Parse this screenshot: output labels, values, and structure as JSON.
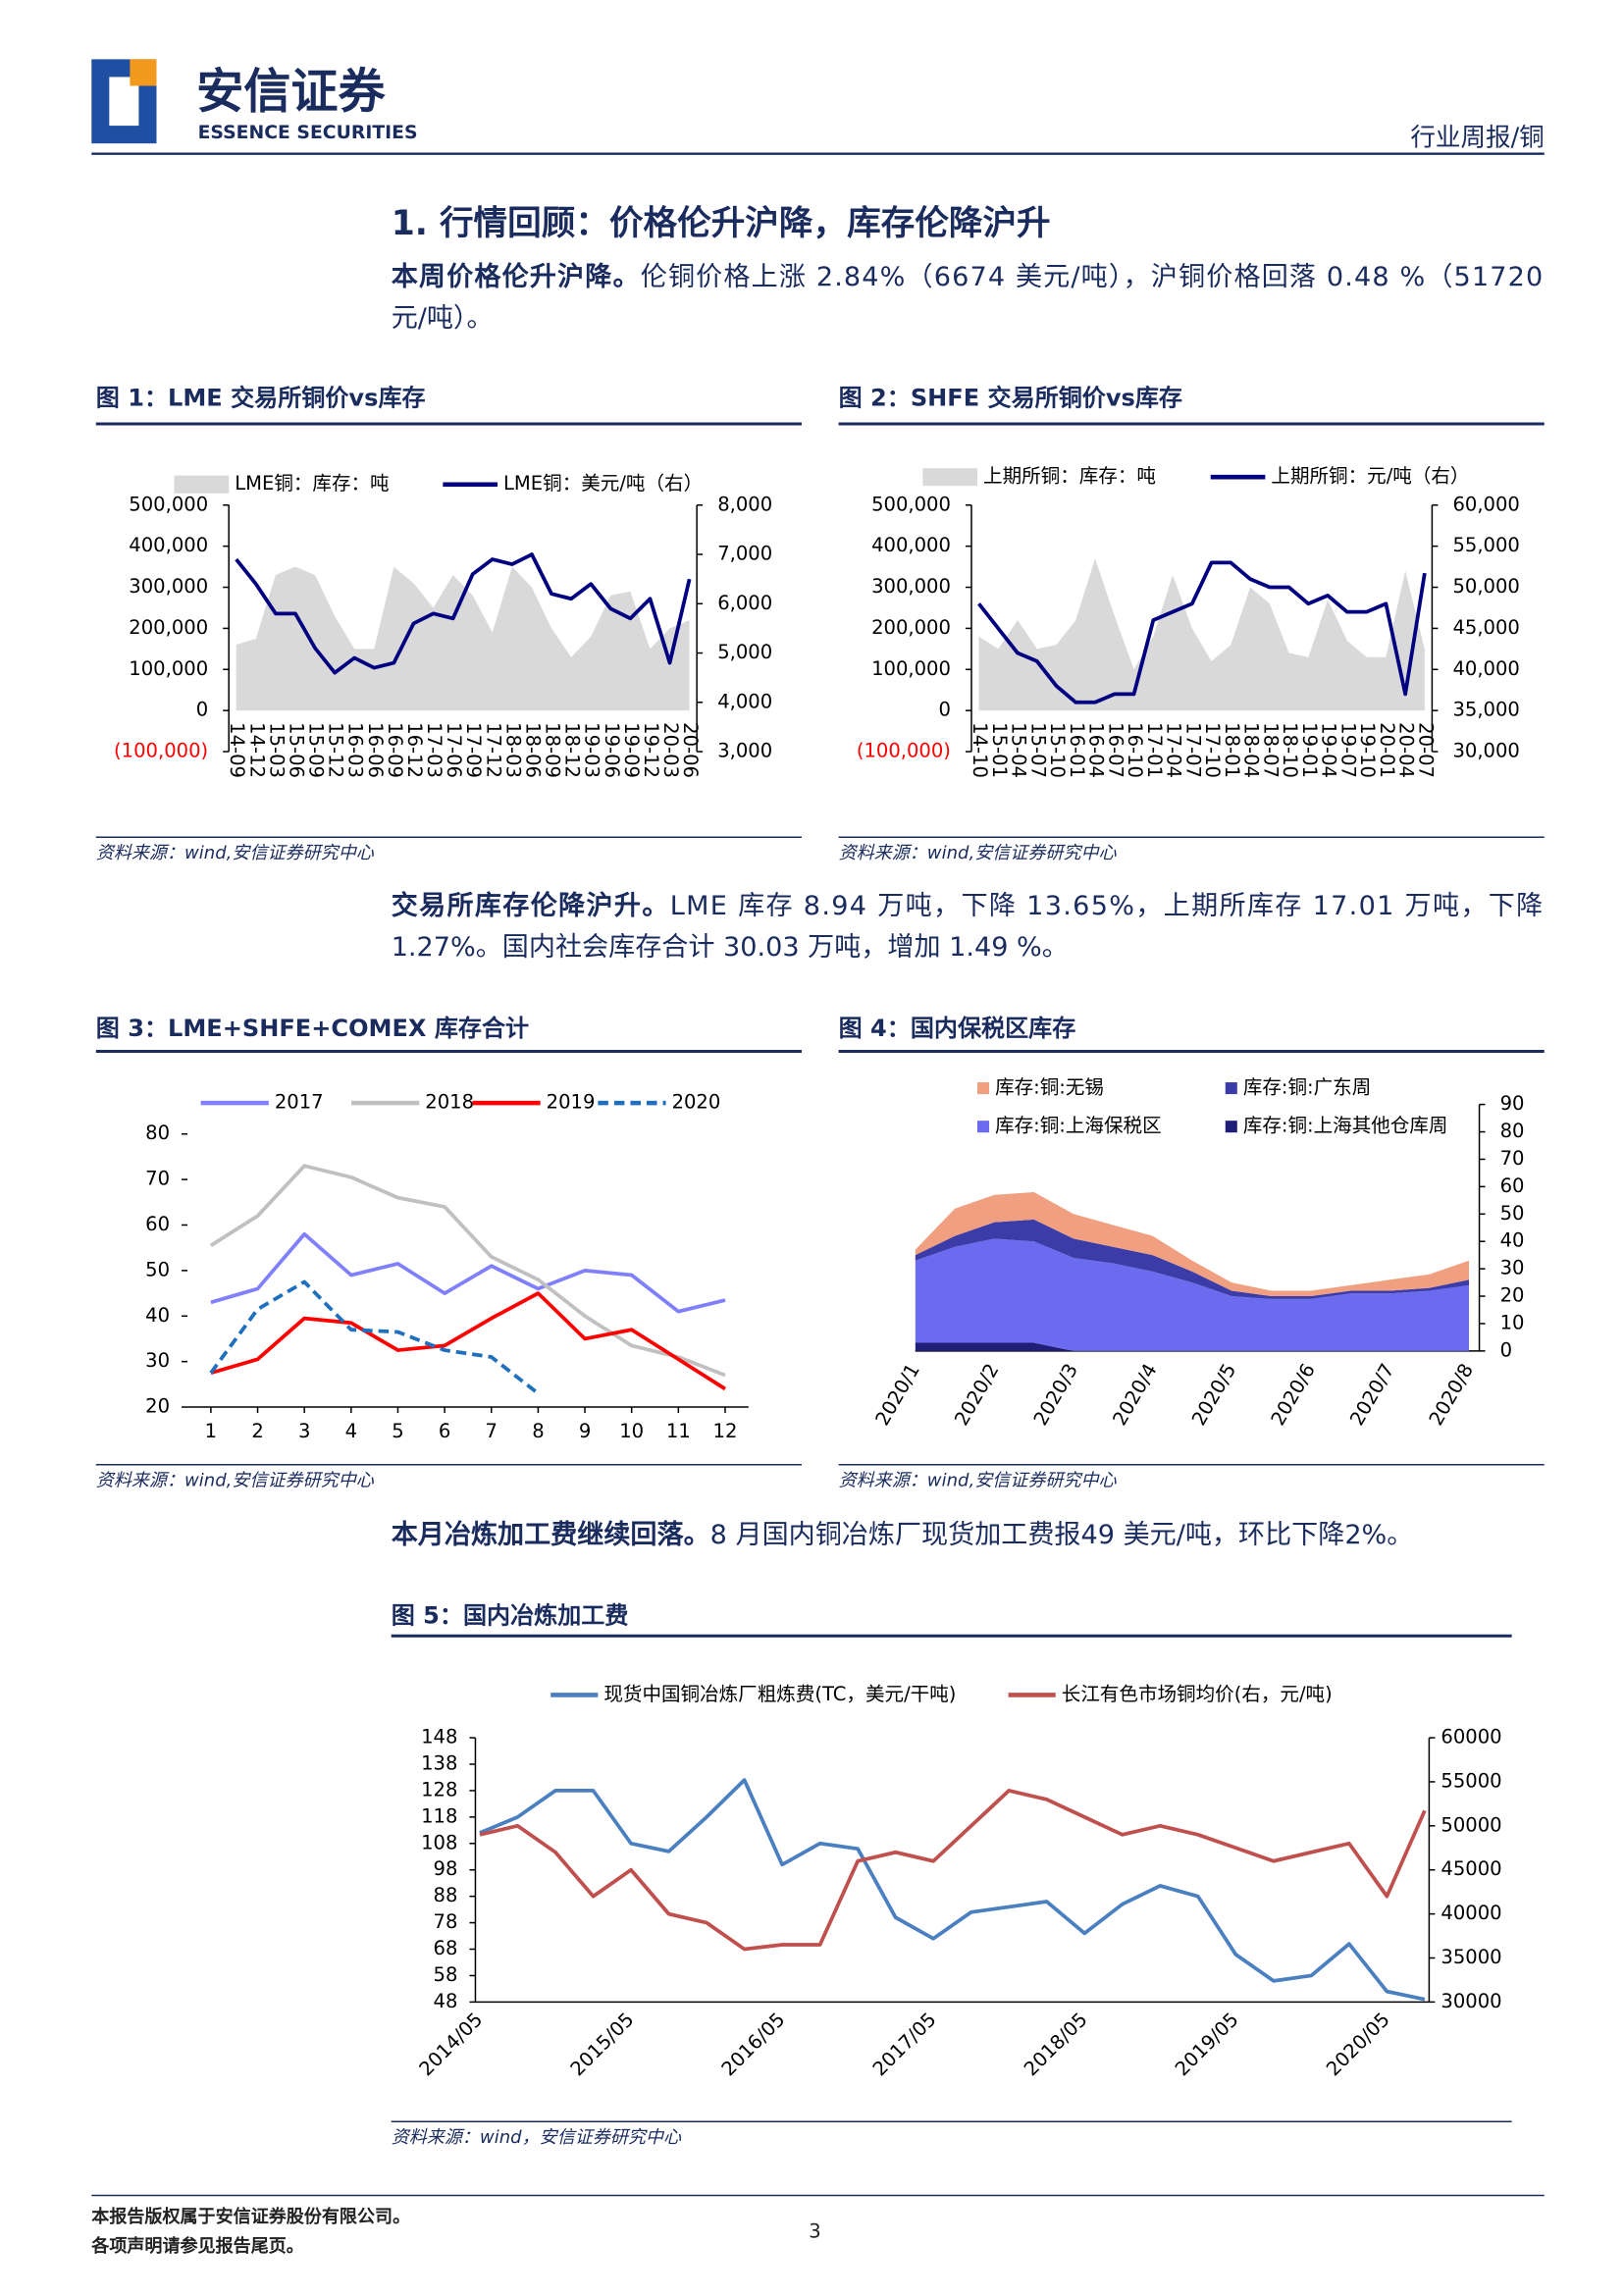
{
  "header": {
    "brand": "安信证券",
    "brand_en": "ESSENCE SECURITIES",
    "category": "行业周报/铜"
  },
  "section_title": "1. 行情回顾：价格伦升沪降，库存伦降沪升",
  "paragraphs": [
    {
      "lead": "本周价格伦升沪降。",
      "lines": [
        "伦铜价格上涨 2.84%（6674 美元/吨），沪铜价格回落 0.48 %（51720",
        "元/吨）。"
      ]
    },
    {
      "lead": "交易所库存伦降沪升。",
      "lines": [
        "LME 库存 8.94 万吨，下降 13.65%，上期所库存 17.01 万吨，下降",
        "1.27%。国内社会库存合计 30.03 万吨，增加 1.49 %。"
      ]
    },
    {
      "lead": "本月冶炼加工费继续回落。",
      "lines": [
        "8 月国内铜冶炼厂现货加工费报49 美元/吨，环比下降2%。"
      ]
    }
  ],
  "chart_data": [
    {
      "type": "combo",
      "title": "图 1：LME 交易所铜价vs库存",
      "source": "资料来源：wind,安信证券研究中心",
      "categories": [
        "14-09",
        "14-12",
        "15-03",
        "15-06",
        "15-09",
        "15-12",
        "16-03",
        "16-06",
        "16-09",
        "16-12",
        "17-03",
        "17-06",
        "17-09",
        "17-12",
        "18-03",
        "18-06",
        "18-09",
        "18-12",
        "19-03",
        "19-06",
        "19-09",
        "19-12",
        "20-03",
        "20-06"
      ],
      "series": [
        {
          "name": "LME铜：库存：吨",
          "kind": "area",
          "color": "#d9d9d9",
          "values": [
            160000,
            175000,
            330000,
            350000,
            330000,
            230000,
            150000,
            150000,
            350000,
            310000,
            250000,
            330000,
            280000,
            190000,
            350000,
            300000,
            200000,
            130000,
            180000,
            280000,
            290000,
            150000,
            200000,
            220000
          ]
        },
        {
          "name": "LME铜：美元/吨（右）",
          "kind": "line",
          "axis": "y2",
          "color": "#000080",
          "values": [
            6900,
            6400,
            5800,
            5800,
            5100,
            4600,
            4900,
            4700,
            4800,
            5600,
            5800,
            5700,
            6600,
            6900,
            6800,
            7000,
            6200,
            6100,
            6400,
            5900,
            5700,
            6100,
            4800,
            6500
          ]
        }
      ],
      "ylim": [
        -100000,
        500000
      ],
      "yticks": [
        {
          "value": -100000,
          "label": "(100,000)"
        },
        0,
        {
          "value": 100000,
          "label": "100,000"
        },
        {
          "value": 200000,
          "label": "200,000"
        },
        {
          "value": 300000,
          "label": "300,000"
        },
        {
          "value": 400000,
          "label": "400,000"
        },
        {
          "value": 500000,
          "label": "500,000"
        }
      ],
      "negative_tick_color": "#ff0000",
      "y2lim": [
        3000,
        8000
      ],
      "y2ticks": [
        {
          "value": 3000,
          "label": "3,000"
        },
        {
          "value": 4000,
          "label": "4,000"
        },
        {
          "value": 5000,
          "label": "5,000"
        },
        {
          "value": 6000,
          "label": "6,000"
        },
        {
          "value": 7000,
          "label": "7,000"
        },
        {
          "value": 8000,
          "label": "8,000"
        }
      ]
    },
    {
      "type": "combo",
      "title": "图 2：SHFE 交易所铜价vs库存",
      "source": "资料来源：wind,安信证券研究中心",
      "categories": [
        "14-10",
        "15-01",
        "15-04",
        "15-07",
        "15-10",
        "16-01",
        "16-04",
        "16-07",
        "16-10",
        "17-01",
        "17-04",
        "17-07",
        "17-10",
        "18-01",
        "18-04",
        "18-07",
        "18-10",
        "19-01",
        "19-04",
        "19-07",
        "19-10",
        "20-01",
        "20-04",
        "20-07"
      ],
      "series": [
        {
          "name": "上期所铜：库存：吨",
          "kind": "area",
          "color": "#d9d9d9",
          "values": [
            180000,
            150000,
            220000,
            150000,
            160000,
            220000,
            370000,
            230000,
            100000,
            180000,
            330000,
            200000,
            120000,
            160000,
            300000,
            260000,
            140000,
            130000,
            270000,
            170000,
            130000,
            130000,
            340000,
            150000
          ]
        },
        {
          "name": "上期所铜：元/吨（右）",
          "kind": "line",
          "axis": "y2",
          "color": "#000080",
          "values": [
            48000,
            45000,
            42000,
            41000,
            38000,
            36000,
            36000,
            37000,
            37000,
            46000,
            47000,
            48000,
            53000,
            53000,
            51000,
            50000,
            50000,
            48000,
            49000,
            47000,
            47000,
            48000,
            37000,
            51720
          ]
        }
      ],
      "ylim": [
        -100000,
        500000
      ],
      "yticks": [
        {
          "value": -100000,
          "label": "(100,000)"
        },
        0,
        {
          "value": 100000,
          "label": "100,000"
        },
        {
          "value": 200000,
          "label": "200,000"
        },
        {
          "value": 300000,
          "label": "300,000"
        },
        {
          "value": 400000,
          "label": "400,000"
        },
        {
          "value": 500000,
          "label": "500,000"
        }
      ],
      "negative_tick_color": "#ff0000",
      "y2lim": [
        30000,
        60000
      ],
      "y2ticks": [
        {
          "value": 30000,
          "label": "30,000"
        },
        {
          "value": 35000,
          "label": "35,000"
        },
        {
          "value": 40000,
          "label": "40,000"
        },
        {
          "value": 45000,
          "label": "45,000"
        },
        {
          "value": 50000,
          "label": "50,000"
        },
        {
          "value": 55000,
          "label": "55,000"
        },
        {
          "value": 60000,
          "label": "60,000"
        }
      ]
    },
    {
      "type": "line",
      "title": "图 3：LME+SHFE+COMEX 库存合计",
      "source": "资料来源：wind,安信证券研究中心",
      "x": [
        1,
        2,
        3,
        4,
        5,
        6,
        7,
        8,
        9,
        10,
        11,
        12
      ],
      "xlim": [
        0.5,
        12.5
      ],
      "xticks": [
        1,
        2,
        3,
        4,
        5,
        6,
        7,
        8,
        9,
        10,
        11,
        12
      ],
      "series": [
        {
          "name": "2017",
          "color": "#8080ff",
          "values": [
            43,
            46,
            58,
            49,
            51.5,
            45,
            51,
            46,
            50,
            49,
            41,
            43.5
          ]
        },
        {
          "name": "2018",
          "color": "#c0c0c0",
          "values": [
            55.5,
            62,
            73,
            70.5,
            66,
            64,
            53,
            48,
            40,
            33.5,
            31,
            27
          ]
        },
        {
          "name": "2019",
          "color": "#ff0000",
          "values": [
            27.5,
            30.5,
            39.5,
            38.5,
            32.5,
            33.5,
            39.5,
            45,
            35,
            37,
            30.5,
            24
          ]
        },
        {
          "name": "2020",
          "color": "#1f6fbf",
          "style": "dashed",
          "values": [
            27.5,
            41.5,
            47.5,
            37,
            36.5,
            32.5,
            31,
            23,
            null,
            null,
            null,
            null
          ]
        }
      ],
      "ylim": [
        20,
        80
      ],
      "yticks": [
        20,
        30,
        40,
        50,
        60,
        70,
        80
      ]
    },
    {
      "type": "area",
      "stacked": true,
      "title": "图 4：国内保税区库存",
      "source": "资料来源：wind,安信证券研究中心",
      "categories": [
        "2020/1",
        null,
        "2020/2",
        null,
        "2020/3",
        null,
        "2020/4",
        null,
        "2020/5",
        null,
        "2020/6",
        null,
        "2020/7",
        null,
        "2020/8"
      ],
      "series": [
        {
          "name": "库存:铜:上海其他仓库周",
          "color": "#1f1f7a",
          "values": [
            3,
            3,
            3,
            3,
            0,
            0,
            0,
            0,
            0,
            0,
            0,
            0,
            0,
            0,
            0
          ]
        },
        {
          "name": "库存:铜:上海保税区",
          "color": "#6b6bef",
          "values": [
            30,
            35,
            38,
            37,
            34,
            32,
            29,
            25,
            20,
            19,
            19,
            21,
            21,
            22,
            24
          ]
        },
        {
          "name": "库存:铜:广东周",
          "color": "#3c3ca8",
          "values": [
            2,
            4,
            6,
            8,
            7,
            6,
            6,
            4,
            2,
            1,
            1,
            1,
            1,
            1,
            2
          ]
        },
        {
          "name": "库存:铜:无锡",
          "color": "#f0a080",
          "values": [
            2,
            10,
            10,
            10,
            9,
            8,
            7,
            4,
            3,
            2,
            2,
            2,
            4,
            5,
            7
          ]
        }
      ],
      "y_axis_position": "right",
      "ylim": [
        0,
        90
      ],
      "yticks": [
        0,
        10,
        20,
        30,
        40,
        50,
        60,
        70,
        80,
        90
      ]
    },
    {
      "type": "line",
      "title": "图 5：国内冶炼加工费",
      "source": "资料来源：wind，安信证券研究中心",
      "categories": [
        "2014/05",
        null,
        null,
        null,
        "2015/05",
        null,
        null,
        null,
        "2016/05",
        null,
        null,
        null,
        "2017/05",
        null,
        null,
        null,
        "2018/05",
        null,
        null,
        null,
        "2019/05",
        null,
        null,
        null,
        "2020/05",
        null
      ],
      "series": [
        {
          "name": "现货中国铜冶炼厂粗炼费(TC，美元/干吨)",
          "color": "#4a7fc0",
          "values": [
            112,
            118,
            128,
            128,
            108,
            105,
            118,
            132,
            100,
            108,
            106,
            80,
            72,
            82,
            84,
            86,
            74,
            85,
            92,
            88,
            66,
            56,
            58,
            70,
            52,
            49
          ]
        },
        {
          "name": "长江有色市场铜均价(右，元/吨)",
          "color": "#c0504d",
          "axis": "y2",
          "values": [
            49000,
            50000,
            47000,
            42000,
            45000,
            40000,
            39000,
            36000,
            36500,
            36500,
            46000,
            47000,
            46000,
            50000,
            54000,
            53000,
            51000,
            49000,
            50000,
            49000,
            47500,
            46000,
            47000,
            48000,
            42000,
            51720
          ]
        }
      ],
      "ylim": [
        48,
        148
      ],
      "yticks": [
        48,
        58,
        68,
        78,
        88,
        98,
        108,
        118,
        128,
        138,
        148
      ],
      "y2lim": [
        30000,
        60000
      ],
      "y2ticks": [
        30000,
        35000,
        40000,
        45000,
        50000,
        55000,
        60000
      ]
    }
  ],
  "footer": {
    "lines": [
      "本报告版权属于安信证券股份有限公司。",
      "各项声明请参见报告尾页。"
    ],
    "page": "3"
  }
}
